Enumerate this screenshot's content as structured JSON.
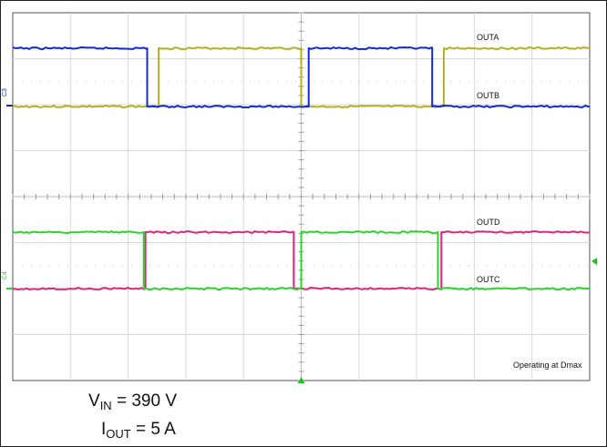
{
  "chart_data": {
    "type": "line",
    "title": "",
    "xlabel": "",
    "ylabel": "",
    "grid": true,
    "grid_divisions": {
      "x": 10,
      "y": 8
    },
    "colors": {
      "OUTA": "#b5b023",
      "OUTB": "#1428d8",
      "OUTC": "#2fd12f",
      "OUTD": "#e0267a",
      "grid": "#d9d9d9",
      "axis": "#bdbdbd",
      "frame": "#555555",
      "marker": "#1ec21e"
    },
    "series": [
      {
        "name": "OUTA",
        "pane": "top",
        "label_at": "high",
        "transitions_div": [
          2.53,
          5.0,
          7.47
        ],
        "initial": "low"
      },
      {
        "name": "OUTB",
        "pane": "top",
        "label_at": "low",
        "transitions_div": [
          2.33,
          5.13,
          7.27
        ],
        "initial": "high"
      },
      {
        "name": "OUTD",
        "pane": "bottom",
        "label_at": "high",
        "transitions_div": [
          2.3,
          4.87,
          7.43
        ],
        "initial": "low"
      },
      {
        "name": "OUTC",
        "pane": "bottom",
        "label_at": "low",
        "transitions_div": [
          2.27,
          5.0,
          7.37
        ],
        "initial": "high"
      }
    ],
    "channel_markers": [
      "C3",
      "C4"
    ],
    "annotation": "Operating at Dmax"
  },
  "caption": {
    "vin_symbol": "V",
    "vin_sub": "IN",
    "vin_value": " = 390 V",
    "iout_symbol": "I",
    "iout_sub": "OUT",
    "iout_value": " = 5 A"
  }
}
